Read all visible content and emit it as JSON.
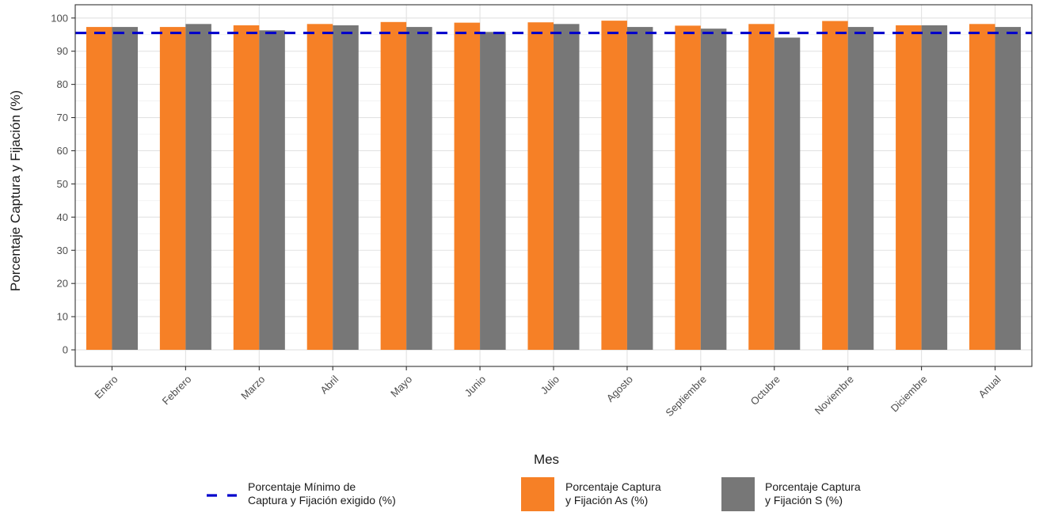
{
  "chart_data": {
    "type": "bar",
    "xlabel": "Mes",
    "ylabel": "Porcentaje Captura y Fijación (%)",
    "ylim": [
      -5,
      104
    ],
    "yticks": [
      0,
      10,
      20,
      30,
      40,
      50,
      60,
      70,
      80,
      90,
      100
    ],
    "categories": [
      "Enero",
      "Febrero",
      "Marzo",
      "Abril",
      "Mayo",
      "Junio",
      "Julio",
      "Agosto",
      "Septiembre",
      "Octubre",
      "Noviembre",
      "Diciembre",
      "Anual"
    ],
    "series": [
      {
        "name": "Porcentaje Captura y Fijación As (%)",
        "color": "#f68026",
        "values": [
          97.3,
          97.3,
          97.8,
          98.2,
          98.8,
          98.6,
          98.7,
          99.2,
          97.7,
          98.2,
          99.1,
          97.8,
          98.2
        ]
      },
      {
        "name": "Porcentaje Captura y Fijación S (%)",
        "color": "#777777",
        "values": [
          97.3,
          98.2,
          96.3,
          97.8,
          97.3,
          95.8,
          98.2,
          97.3,
          96.8,
          94.1,
          97.3,
          97.8,
          97.3
        ]
      }
    ],
    "reference_line": {
      "name": "Porcentaje Mínimo de Captura y Fijación exigido (%)",
      "value": 95.5,
      "color": "#0000cc",
      "style": "dashed"
    },
    "grid": true,
    "legend_position": "bottom"
  },
  "legend": {
    "ref_line": [
      "Porcentaje Mínimo de",
      "Captura y Fijación exigido (%)"
    ],
    "as": [
      "Porcentaje Captura",
      "y Fijación As (%)"
    ],
    "s": [
      "Porcentaje Captura",
      "y Fijación S (%)"
    ]
  }
}
